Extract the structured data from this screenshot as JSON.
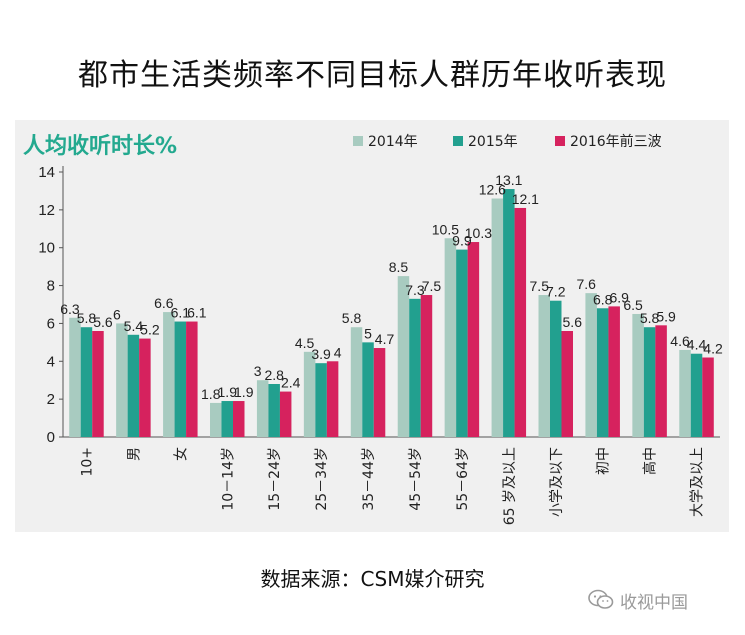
{
  "page": {
    "title": "都市生活类频率不同目标人群历年收听表现",
    "source": "数据来源：CSM媒介研究",
    "watermark": "收视中国"
  },
  "colors": {
    "series_2014": "#a8cbc0",
    "series_2015": "#22a08f",
    "series_2016": "#d6225e",
    "metric_label": "#23a98f",
    "panel_bg": "#f0f0f0"
  },
  "chart_data": {
    "type": "bar",
    "title": "人均收听时长%",
    "xlabel": "",
    "ylabel": "",
    "ylim": [
      0,
      14
    ],
    "yticks": [
      0,
      2,
      4,
      6,
      8,
      10,
      12,
      14
    ],
    "grid": false,
    "legend_position": "top",
    "categories": [
      "10+",
      "男",
      "女",
      "10－14岁",
      "15－24岁",
      "25－34岁",
      "35－44岁",
      "45－54岁",
      "55－64岁",
      "65 岁及以上",
      "小学及以下",
      "初中",
      "高中",
      "大学及以上"
    ],
    "series": [
      {
        "name": "2014年",
        "values": [
          6.3,
          6,
          6.6,
          1.8,
          3,
          4.5,
          5.8,
          8.5,
          10.5,
          12.6,
          7.5,
          7.6,
          6.5,
          4.6
        ],
        "labels": [
          "6.3",
          "6",
          "6.6",
          "1.8",
          "3",
          "4.5",
          "5.8",
          "8.5",
          "10.5",
          "12.6",
          "7.5",
          "7.6",
          "6.5",
          "4.6"
        ]
      },
      {
        "name": "2015年",
        "values": [
          5.8,
          5.4,
          6.1,
          1.9,
          2.8,
          3.9,
          5,
          7.3,
          9.9,
          13.1,
          7.2,
          6.8,
          5.8,
          4.4
        ],
        "labels": [
          "5.8",
          "5.4",
          "6.1",
          "1.9",
          "2.8",
          "3.9",
          "5",
          "7.3",
          "9.9",
          "13.1",
          "7.2",
          "6.8",
          "5.8",
          "4.4"
        ]
      },
      {
        "name": "2016年前三波",
        "values": [
          5.6,
          5.2,
          6.1,
          1.9,
          2.4,
          4,
          4.7,
          7.5,
          10.3,
          12.1,
          5.6,
          6.9,
          5.9,
          4.2
        ],
        "labels": [
          "5.6",
          "5.2",
          "6.1",
          "1.9",
          "2.4",
          "4",
          "4.7",
          "7.5",
          "10.3",
          "12.1",
          "5.6",
          "6.9",
          "5.9",
          "4.2"
        ]
      }
    ]
  }
}
